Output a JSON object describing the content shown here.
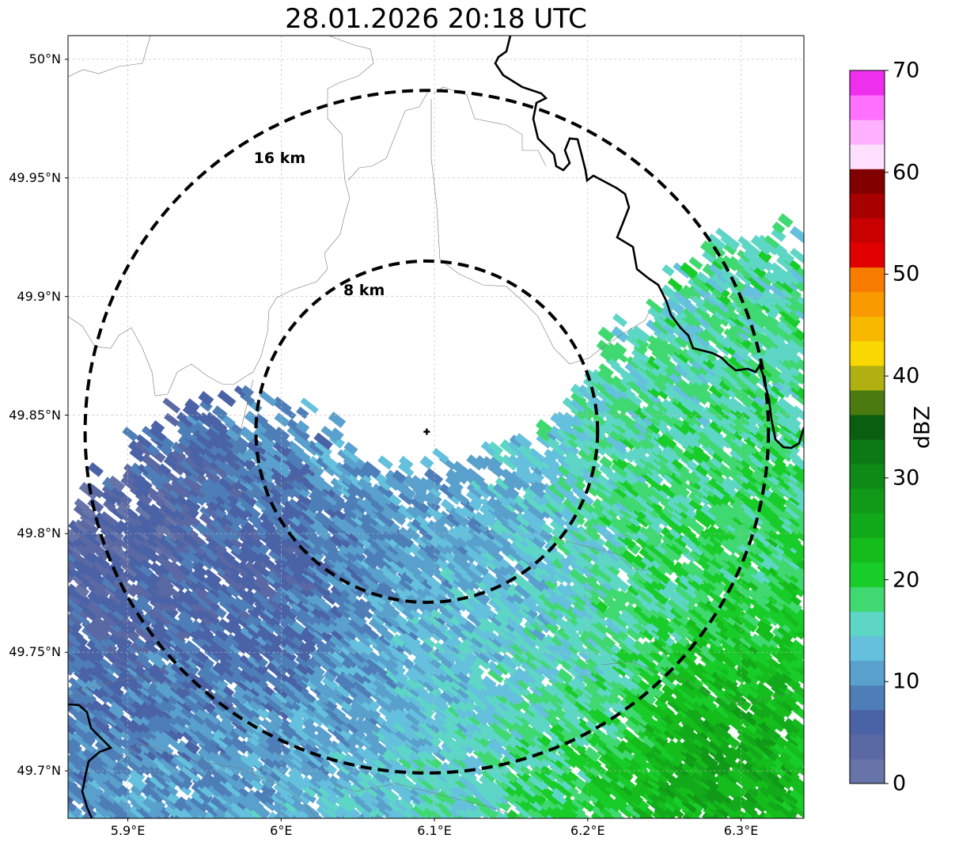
{
  "chart_data": {
    "type": "heatmap",
    "title": "28.01.2026 20:18 UTC",
    "xlim": [
      5.861,
      6.341
    ],
    "ylim": [
      49.68,
      50.01
    ],
    "x_ticks": [
      {
        "value": 5.9,
        "label": "5.9°E"
      },
      {
        "value": 6.0,
        "label": "6°E"
      },
      {
        "value": 6.1,
        "label": "6.1°E"
      },
      {
        "value": 6.2,
        "label": "6.2°E"
      },
      {
        "value": 6.3,
        "label": "6.3°E"
      }
    ],
    "y_ticks": [
      {
        "value": 49.7,
        "label": "49.7°N"
      },
      {
        "value": 49.75,
        "label": "49.75°N"
      },
      {
        "value": 49.8,
        "label": "49.8°N"
      },
      {
        "value": 49.85,
        "label": "49.85°N"
      },
      {
        "value": 49.9,
        "label": "49.9°N"
      },
      {
        "value": 49.95,
        "label": "49.95°N"
      },
      {
        "value": 50.0,
        "label": "50°N"
      }
    ],
    "grid": true,
    "radar_site": {
      "lon": 6.095,
      "lat": 49.843
    },
    "range_rings": [
      {
        "radius_km": 8,
        "label": "8 km"
      },
      {
        "radius_km": 16,
        "label": "16 km"
      }
    ],
    "colorbar": {
      "label": "dBZ",
      "min": 0,
      "max": 70,
      "ticks": [
        0,
        10,
        20,
        30,
        40,
        50,
        60,
        70
      ],
      "colors": [
        "#6674a8",
        "#5a68a4",
        "#4a62a6",
        "#4e7eb8",
        "#5aa0cc",
        "#64c0dc",
        "#5ed6c6",
        "#40d870",
        "#18cc2a",
        "#14bc1c",
        "#12aa1a",
        "#109a18",
        "#0e8a16",
        "#0c7a14",
        "#0a5e10",
        "#4a7a10",
        "#b0b010",
        "#f8d800",
        "#f8b800",
        "#f89a00",
        "#f87c00",
        "#e00000",
        "#c80000",
        "#a80000",
        "#800000",
        "#ffe0ff",
        "#ffb0ff",
        "#ff70ff",
        "#ee30ee"
      ]
    },
    "echo_field": {
      "units": "dBZ",
      "sample_values": [
        {
          "lon": 5.9,
          "lat": 49.8,
          "dbz": 3
        },
        {
          "lon": 6.0,
          "lat": 49.78,
          "dbz": 6
        },
        {
          "lon": 6.1,
          "lat": 49.8,
          "dbz": 10
        },
        {
          "lon": 6.15,
          "lat": 49.77,
          "dbz": 13
        },
        {
          "lon": 6.22,
          "lat": 49.74,
          "dbz": 16
        },
        {
          "lon": 6.27,
          "lat": 49.8,
          "dbz": 19
        },
        {
          "lon": 6.28,
          "lat": 49.72,
          "dbz": 23
        },
        {
          "lon": 6.31,
          "lat": 49.88,
          "dbz": 17
        },
        {
          "lon": 6.28,
          "lat": 49.71,
          "dbz": 30
        }
      ]
    }
  }
}
